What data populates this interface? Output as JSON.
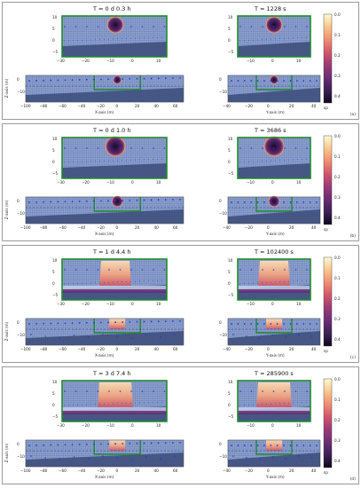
{
  "colors": {
    "cmap": [
      "#fdfbd3",
      "#f9c68d",
      "#f08f70",
      "#d0566c",
      "#9c3a76",
      "#6b2d74",
      "#3b2055",
      "#10061f"
    ],
    "grid": "#5f74b5",
    "bg": "#8fa3cd",
    "frame": "#1f8a2c",
    "blue": "#1d3adb"
  },
  "colorbar": {
    "ticks": [
      "0.0",
      "0.1",
      "0.2",
      "0.3",
      "0.4"
    ],
    "unit": "εp"
  },
  "top_xticks": [
    "−30",
    "−20",
    "−10",
    "0",
    "10"
  ],
  "top_yticks": [
    "10",
    "5",
    "0",
    "−5"
  ],
  "top_right_xticks": [
    "−10",
    "0",
    "10"
  ],
  "x_label": "X-axis (m)",
  "y_label": "Y-axis (m)",
  "z_label": "Z-axis (m)",
  "left_bottom_xticks": [
    "−100",
    "−80",
    "−60",
    "−40",
    "−20",
    "0",
    "20",
    "40",
    "60"
  ],
  "right_bottom_xticks": [
    "−40",
    "−20",
    "0",
    "20",
    "40"
  ],
  "bottom_yticks": [
    "0",
    "−10"
  ],
  "panels": [
    {
      "tag": "(a)",
      "title_left": "T = 0 d  0.3 h",
      "title_right": "T = 1228 s",
      "stage": 0
    },
    {
      "tag": "(b)",
      "title_left": "T = 0 d  1.0 h",
      "title_right": "T = 3686 s",
      "stage": 1
    },
    {
      "tag": "(c)",
      "title_left": "T = 1 d  4.4 h",
      "title_right": "T = 102400 s",
      "stage": 2
    },
    {
      "tag": "(d)",
      "title_left": "T = 3 d  7.4 h",
      "title_right": "T = 285900 s",
      "stage": 3
    }
  ]
}
